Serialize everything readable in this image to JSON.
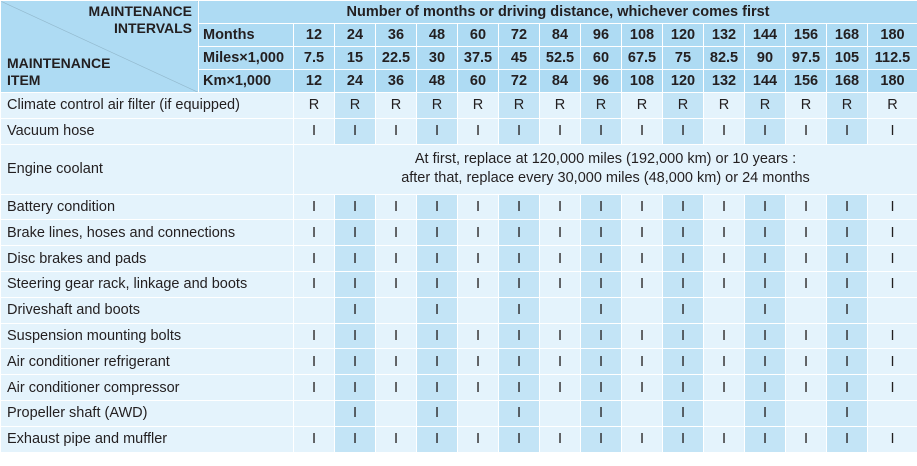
{
  "header": {
    "corner_top_line1": "MAINTENANCE",
    "corner_top_line2": "INTERVALS",
    "corner_bottom_line1": "MAINTENANCE",
    "corner_bottom_line2": "ITEM",
    "title": "Number of months or driving distance, whichever comes first",
    "months_label": "Months",
    "miles_label": "Miles×1,000",
    "km_label": "Km×1,000",
    "months": [
      "12",
      "24",
      "36",
      "48",
      "60",
      "72",
      "84",
      "96",
      "108",
      "120",
      "132",
      "144",
      "156",
      "168",
      "180"
    ],
    "miles": [
      "7.5",
      "15",
      "22.5",
      "30",
      "37.5",
      "45",
      "52.5",
      "60",
      "67.5",
      "75",
      "82.5",
      "90",
      "97.5",
      "105",
      "112.5"
    ],
    "km": [
      "12",
      "24",
      "36",
      "48",
      "60",
      "72",
      "84",
      "96",
      "108",
      "120",
      "132",
      "144",
      "156",
      "168",
      "180"
    ]
  },
  "items": [
    {
      "label": "Climate control air filter (if equipped)",
      "marks": [
        "R",
        "R",
        "R",
        "R",
        "R",
        "R",
        "R",
        "R",
        "R",
        "R",
        "R",
        "R",
        "R",
        "R",
        "R"
      ]
    },
    {
      "label": "Vacuum hose",
      "marks": [
        "I",
        "I",
        "I",
        "I",
        "I",
        "I",
        "I",
        "I",
        "I",
        "I",
        "I",
        "I",
        "I",
        "I",
        "I"
      ]
    },
    {
      "label": "Engine coolant",
      "note_line1": "At first, replace at 120,000 miles (192,000 km) or 10 years :",
      "note_line2": "after that, replace every 30,000 miles (48,000 km) or 24 months"
    },
    {
      "label": "Battery condition",
      "marks": [
        "I",
        "I",
        "I",
        "I",
        "I",
        "I",
        "I",
        "I",
        "I",
        "I",
        "I",
        "I",
        "I",
        "I",
        "I"
      ]
    },
    {
      "label": "Brake lines, hoses and connections",
      "marks": [
        "I",
        "I",
        "I",
        "I",
        "I",
        "I",
        "I",
        "I",
        "I",
        "I",
        "I",
        "I",
        "I",
        "I",
        "I"
      ]
    },
    {
      "label": "Disc brakes and pads",
      "marks": [
        "I",
        "I",
        "I",
        "I",
        "I",
        "I",
        "I",
        "I",
        "I",
        "I",
        "I",
        "I",
        "I",
        "I",
        "I"
      ]
    },
    {
      "label": "Steering gear rack, linkage and boots",
      "marks": [
        "I",
        "I",
        "I",
        "I",
        "I",
        "I",
        "I",
        "I",
        "I",
        "I",
        "I",
        "I",
        "I",
        "I",
        "I"
      ]
    },
    {
      "label": "Driveshaft and boots",
      "marks": [
        "",
        "I",
        "",
        "I",
        "",
        "I",
        "",
        "I",
        "",
        "I",
        "",
        "I",
        "",
        "I",
        ""
      ]
    },
    {
      "label": "Suspension mounting bolts",
      "marks": [
        "I",
        "I",
        "I",
        "I",
        "I",
        "I",
        "I",
        "I",
        "I",
        "I",
        "I",
        "I",
        "I",
        "I",
        "I"
      ]
    },
    {
      "label": "Air conditioner refrigerant",
      "marks": [
        "I",
        "I",
        "I",
        "I",
        "I",
        "I",
        "I",
        "I",
        "I",
        "I",
        "I",
        "I",
        "I",
        "I",
        "I"
      ]
    },
    {
      "label": "Air conditioner compressor",
      "marks": [
        "I",
        "I",
        "I",
        "I",
        "I",
        "I",
        "I",
        "I",
        "I",
        "I",
        "I",
        "I",
        "I",
        "I",
        "I"
      ]
    },
    {
      "label": "Propeller shaft (AWD)",
      "marks": [
        "",
        "I",
        "",
        "I",
        "",
        "I",
        "",
        "I",
        "",
        "I",
        "",
        "I",
        "",
        "I",
        ""
      ]
    },
    {
      "label": "Exhaust pipe and muffler",
      "marks": [
        "I",
        "I",
        "I",
        "I",
        "I",
        "I",
        "I",
        "I",
        "I",
        "I",
        "I",
        "I",
        "I",
        "I",
        "I"
      ]
    }
  ],
  "colors": {
    "header_bg": "#aedbf3",
    "light_cell": "#e4f3fc",
    "dark_cell": "#c3e4f6",
    "text": "#231f20"
  }
}
